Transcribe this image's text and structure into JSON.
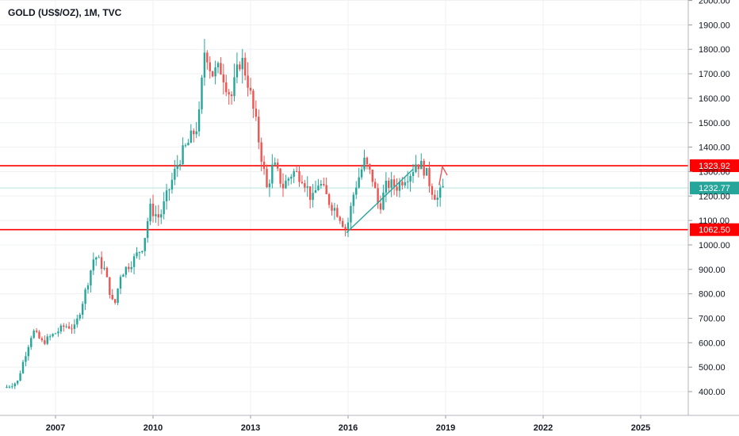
{
  "chart_data": {
    "type": "candlestick",
    "title": "GOLD (US$/OZ), 1M, TVC",
    "ylim": [
      340,
      2010
    ],
    "xlim": [
      2005.3,
      2027.2
    ],
    "y_ticks": [
      400,
      500,
      600,
      700,
      800,
      900,
      1000,
      1100,
      1200,
      1300,
      1400,
      1500,
      1600,
      1700,
      1800,
      1900,
      2000
    ],
    "y_tick_labels": [
      "400.00",
      "500.00",
      "600.00",
      "700.00",
      "800.00",
      "900.00",
      "1000.00",
      "1100.00",
      "1200.00",
      "1300.00",
      "1400.00",
      "1500.00",
      "1600.00",
      "1700.00",
      "1800.00",
      "1900.00",
      "2000.00"
    ],
    "x_ticks": [
      2007,
      2010,
      2013,
      2016,
      2019,
      2022,
      2025
    ],
    "x_tick_labels": [
      "2007",
      "2010",
      "2013",
      "2016",
      "2019",
      "2022",
      "2025"
    ],
    "grid": true,
    "colors": {
      "up": "#26a69a",
      "down": "#ef5350",
      "level_line": "#ff0000",
      "trendline": "#26a69a",
      "arrow": "#ef5350",
      "current_label": "#26a69a",
      "level_label": "#ff0000"
    },
    "horizontal_levels": [
      {
        "value": 1323.92,
        "label": "1323.92"
      },
      {
        "value": 1062.5,
        "label": "1062.50"
      }
    ],
    "current_price": {
      "value": 1232.77,
      "label": "1232.77"
    },
    "trendline": {
      "from": [
        2015.95,
        1050
      ],
      "to": [
        2018.0,
        1310
      ]
    },
    "arrow": {
      "from": [
        2018.8,
        1245
      ],
      "via": [
        2018.9,
        1320
      ],
      "to": [
        2019.05,
        1285
      ]
    },
    "closes": [
      {
        "x": 2005.5,
        "close": 420
      },
      {
        "x": 2005.83,
        "close": 440
      },
      {
        "x": 2006.0,
        "close": 520
      },
      {
        "x": 2006.3,
        "close": 650
      },
      {
        "x": 2006.6,
        "close": 600
      },
      {
        "x": 2006.9,
        "close": 630
      },
      {
        "x": 2007.3,
        "close": 670
      },
      {
        "x": 2007.6,
        "close": 660
      },
      {
        "x": 2007.9,
        "close": 800
      },
      {
        "x": 2008.2,
        "close": 960
      },
      {
        "x": 2008.5,
        "close": 900
      },
      {
        "x": 2008.8,
        "close": 740
      },
      {
        "x": 2009.0,
        "close": 880
      },
      {
        "x": 2009.4,
        "close": 940
      },
      {
        "x": 2009.7,
        "close": 1000
      },
      {
        "x": 2009.9,
        "close": 1150
      },
      {
        "x": 2010.2,
        "close": 1110
      },
      {
        "x": 2010.5,
        "close": 1230
      },
      {
        "x": 2010.8,
        "close": 1350
      },
      {
        "x": 2011.1,
        "close": 1420
      },
      {
        "x": 2011.4,
        "close": 1500
      },
      {
        "x": 2011.6,
        "close": 1820
      },
      {
        "x": 2011.8,
        "close": 1700
      },
      {
        "x": 2012.1,
        "close": 1720
      },
      {
        "x": 2012.4,
        "close": 1600
      },
      {
        "x": 2012.7,
        "close": 1770
      },
      {
        "x": 2012.9,
        "close": 1680
      },
      {
        "x": 2013.2,
        "close": 1470
      },
      {
        "x": 2013.5,
        "close": 1230
      },
      {
        "x": 2013.7,
        "close": 1330
      },
      {
        "x": 2014.0,
        "close": 1240
      },
      {
        "x": 2014.3,
        "close": 1300
      },
      {
        "x": 2014.6,
        "close": 1280
      },
      {
        "x": 2014.9,
        "close": 1180
      },
      {
        "x": 2015.1,
        "close": 1260
      },
      {
        "x": 2015.4,
        "close": 1180
      },
      {
        "x": 2015.7,
        "close": 1130
      },
      {
        "x": 2015.95,
        "close": 1060
      },
      {
        "x": 2016.2,
        "close": 1230
      },
      {
        "x": 2016.5,
        "close": 1340
      },
      {
        "x": 2016.75,
        "close": 1270
      },
      {
        "x": 2016.95,
        "close": 1150
      },
      {
        "x": 2017.2,
        "close": 1250
      },
      {
        "x": 2017.5,
        "close": 1240
      },
      {
        "x": 2017.75,
        "close": 1280
      },
      {
        "x": 2017.95,
        "close": 1300
      },
      {
        "x": 2018.1,
        "close": 1340
      },
      {
        "x": 2018.35,
        "close": 1310
      },
      {
        "x": 2018.6,
        "close": 1220
      },
      {
        "x": 2018.75,
        "close": 1190
      },
      {
        "x": 2018.92,
        "close": 1232
      }
    ]
  }
}
